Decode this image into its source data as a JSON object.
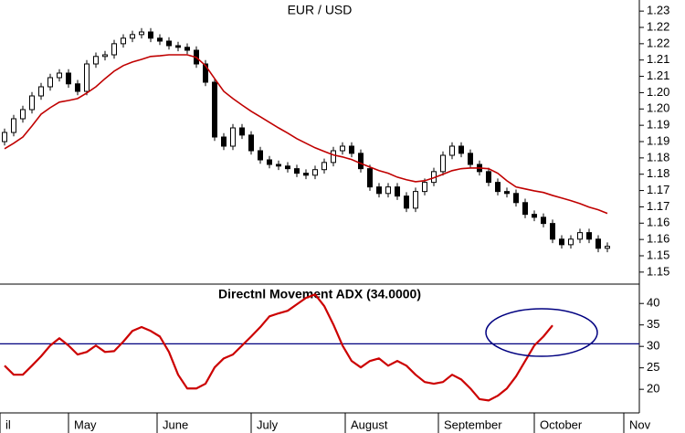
{
  "chart_data": [
    {
      "type": "candlestick",
      "title": "EUR / USD",
      "ylim": [
        1.1466,
        1.2334
      ],
      "yticks": [
        1.23,
        {
          "value": 1.225,
          "label": "1.22"
        },
        1.22,
        {
          "value": 1.215,
          "label": "1.21"
        },
        1.21,
        {
          "value": 1.205,
          "label": "1.20"
        },
        {
          "value": 1.2,
          "label": "1.20"
        },
        {
          "value": 1.195,
          "label": "1.19"
        },
        1.19,
        {
          "value": 1.185,
          "label": "1.18"
        },
        1.18,
        {
          "value": 1.175,
          "label": "1.17"
        },
        1.17,
        {
          "value": 1.165,
          "label": "1.16"
        },
        1.16,
        {
          "value": 1.155,
          "label": "1.15"
        },
        1.15
      ],
      "up_color": "#ffffff",
      "down_color": "#000000",
      "open": [
        1.19,
        1.1928,
        1.197,
        1.1998,
        1.204,
        1.2068,
        1.2096,
        1.211,
        1.2077,
        1.2054,
        1.2138,
        1.2161,
        1.2166,
        1.22,
        1.2217,
        1.2228,
        1.2236,
        1.2217,
        1.2208,
        1.2194,
        1.2189,
        1.218,
        1.2138,
        1.2082,
        1.1914,
        1.1886,
        1.1942,
        1.192,
        1.1872,
        1.1844,
        1.183,
        1.1825,
        1.1817,
        1.1803,
        1.1797,
        1.1814,
        1.1836,
        1.1872,
        1.1886,
        1.1864,
        1.1817,
        1.1761,
        1.1741,
        1.1761,
        1.1733,
        1.1696,
        1.1747,
        1.1775,
        1.1808,
        1.1858,
        1.1886,
        1.1864,
        1.183,
        1.1808,
        1.1775,
        1.1747,
        1.1741,
        1.1713,
        1.1677,
        1.1668,
        1.1649,
        1.1601,
        1.1584,
        1.1601,
        1.1621,
        1.1601,
        1.1573
      ],
      "high": [
        1.194,
        1.1982,
        1.201,
        1.2052,
        1.208,
        1.2108,
        1.2122,
        1.2122,
        1.2089,
        1.215,
        1.2173,
        1.2178,
        1.2212,
        1.2229,
        1.224,
        1.2248,
        1.2248,
        1.2229,
        1.222,
        1.2206,
        1.2201,
        1.2192,
        1.215,
        1.2094,
        1.1926,
        1.1954,
        1.1954,
        1.1932,
        1.1884,
        1.1856,
        1.1842,
        1.1837,
        1.1829,
        1.1815,
        1.1826,
        1.1848,
        1.1884,
        1.1898,
        1.1898,
        1.1876,
        1.1829,
        1.1773,
        1.1773,
        1.1773,
        1.1745,
        1.1759,
        1.1787,
        1.182,
        1.187,
        1.1898,
        1.1898,
        1.1876,
        1.1842,
        1.182,
        1.1787,
        1.1759,
        1.1753,
        1.1725,
        1.1689,
        1.168,
        1.1661,
        1.1613,
        1.1613,
        1.1633,
        1.1633,
        1.1613,
        1.1591
      ],
      "low": [
        1.1888,
        1.1916,
        1.1958,
        1.1986,
        1.2028,
        1.2056,
        1.2084,
        1.2065,
        1.2042,
        1.2042,
        1.2126,
        1.2149,
        1.2154,
        1.2188,
        1.2205,
        1.2216,
        1.2205,
        1.2196,
        1.2182,
        1.2177,
        1.2168,
        1.2126,
        1.207,
        1.1902,
        1.1874,
        1.1874,
        1.1908,
        1.186,
        1.1832,
        1.1818,
        1.1813,
        1.1805,
        1.1791,
        1.1785,
        1.1785,
        1.1802,
        1.1824,
        1.186,
        1.1852,
        1.1805,
        1.1749,
        1.1729,
        1.1729,
        1.1721,
        1.1684,
        1.1684,
        1.1735,
        1.1763,
        1.1796,
        1.1846,
        1.1852,
        1.1818,
        1.1796,
        1.1763,
        1.1735,
        1.1729,
        1.1701,
        1.1665,
        1.1656,
        1.1637,
        1.1589,
        1.1572,
        1.1572,
        1.1589,
        1.1589,
        1.1561,
        1.1561
      ],
      "close": [
        1.1928,
        1.197,
        1.1998,
        1.204,
        1.2068,
        1.2096,
        1.211,
        1.2077,
        1.2054,
        1.2138,
        1.2161,
        1.2166,
        1.22,
        1.2217,
        1.2228,
        1.2236,
        1.2217,
        1.2208,
        1.2194,
        1.2189,
        1.218,
        1.2138,
        1.2082,
        1.1914,
        1.1886,
        1.1942,
        1.192,
        1.1872,
        1.1844,
        1.183,
        1.1825,
        1.1817,
        1.1803,
        1.1797,
        1.1814,
        1.1836,
        1.1872,
        1.1886,
        1.1864,
        1.1817,
        1.1761,
        1.1741,
        1.1761,
        1.1733,
        1.1696,
        1.1747,
        1.1775,
        1.1808,
        1.1858,
        1.1886,
        1.1864,
        1.183,
        1.1808,
        1.1775,
        1.1747,
        1.1741,
        1.1713,
        1.1677,
        1.1668,
        1.1649,
        1.1601,
        1.1584,
        1.1601,
        1.1621,
        1.1601,
        1.1573,
        1.1579
      ],
      "moving_average": {
        "color": "#c00000",
        "values": [
          1.1878,
          1.1895,
          1.1914,
          1.1948,
          1.1984,
          1.2004,
          1.2021,
          1.2026,
          1.2032,
          1.2049,
          1.2068,
          1.2093,
          1.2116,
          1.2133,
          1.2144,
          1.2152,
          1.2161,
          1.2163,
          1.2166,
          1.2166,
          1.2166,
          1.2158,
          1.2133,
          1.2093,
          1.2054,
          1.2032,
          1.2012,
          1.1993,
          1.1976,
          1.1959,
          1.1942,
          1.1926,
          1.1909,
          1.1895,
          1.1881,
          1.187,
          1.1859,
          1.1853,
          1.1845,
          1.1833,
          1.1822,
          1.1811,
          1.1803,
          1.1791,
          1.1783,
          1.1777,
          1.178,
          1.1789,
          1.18,
          1.1811,
          1.1817,
          1.1819,
          1.1819,
          1.1817,
          1.1803,
          1.178,
          1.1761,
          1.1755,
          1.1749,
          1.1744,
          1.1735,
          1.1727,
          1.1719,
          1.171,
          1.1699,
          1.1691,
          1.168
        ]
      }
    },
    {
      "type": "line",
      "title": "Directnl Movement ADX (34.0000)",
      "ylim": [
        14.5,
        44.3
      ],
      "yticks": [
        40,
        35,
        30,
        25,
        20
      ],
      "color": "#cc0000",
      "values": [
        25.5,
        23.4,
        23.4,
        25.5,
        27.7,
        30.2,
        31.9,
        30.2,
        28.1,
        28.7,
        30.2,
        28.7,
        28.9,
        31.1,
        33.6,
        34.5,
        33.6,
        32.3,
        28.7,
        23.4,
        20.2,
        20.2,
        21.3,
        25.1,
        27.2,
        28.1,
        30.2,
        32.3,
        34.5,
        37.0,
        37.7,
        38.3,
        39.8,
        41.3,
        42.1,
        39.4,
        35.1,
        30.2,
        26.6,
        25.1,
        26.6,
        27.2,
        25.5,
        26.6,
        25.5,
        23.4,
        21.7,
        21.3,
        21.7,
        23.4,
        22.3,
        20.2,
        17.7,
        17.4,
        18.5,
        20.2,
        23.0,
        26.6,
        30.2,
        32.3,
        34.9,
        null,
        null,
        null,
        null,
        null,
        null
      ],
      "reference_line": {
        "value": 30.6,
        "color": "#000080"
      },
      "xticks": [
        {
          "value": -0.5,
          "label": "il"
        },
        {
          "value": 7,
          "label": "May"
        },
        {
          "value": 16.7,
          "label": "June"
        },
        {
          "value": 27,
          "label": "July"
        },
        {
          "value": 37.3,
          "label": "August"
        },
        {
          "value": 47.5,
          "label": "September"
        },
        {
          "value": 58,
          "label": "October"
        },
        {
          "value": 67.8,
          "label": "Nov"
        }
      ]
    }
  ]
}
